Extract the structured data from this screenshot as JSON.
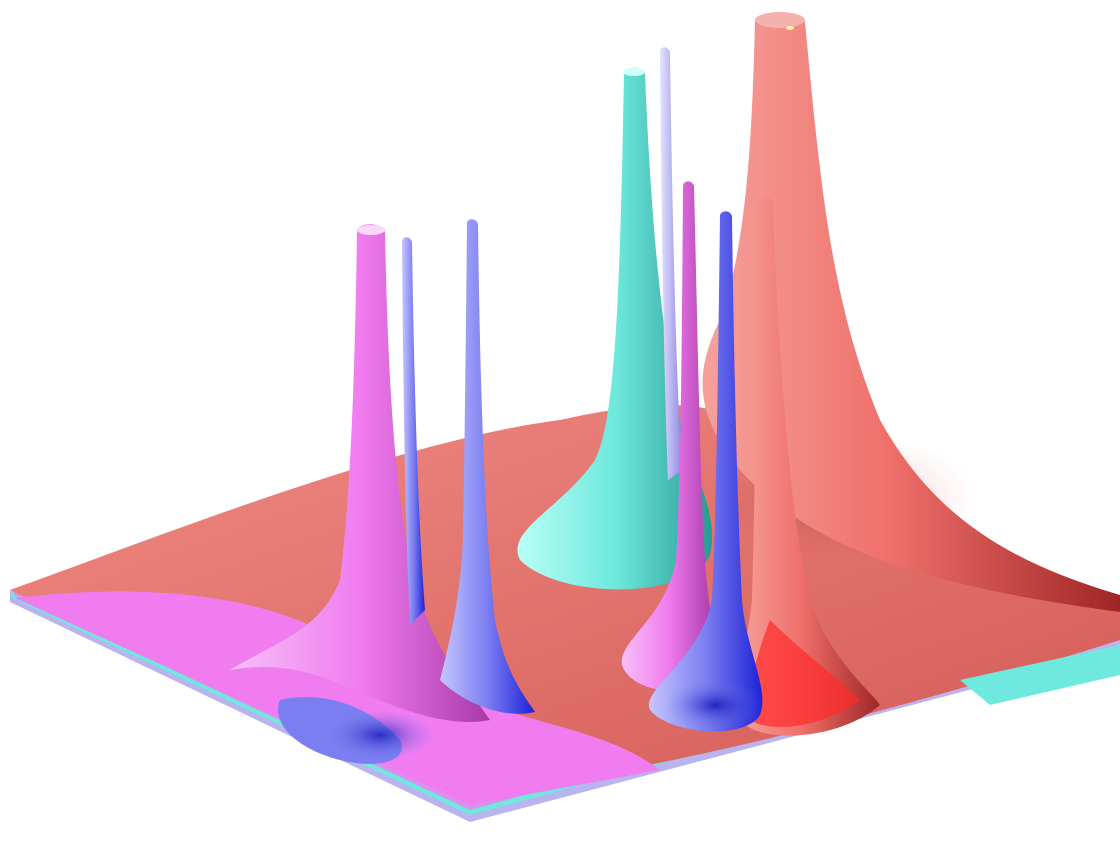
{
  "scene": {
    "subject": "3d-surface-render",
    "colors": {
      "background": "#ffffff",
      "red": "#ef6f6a",
      "red_dark": "#a82f2f",
      "magenta": "#f07cf0",
      "magenta_dark": "#b33ab3",
      "blue": "#7b7ef0",
      "blue_dark": "#1d21d8",
      "cyan": "#6fe8dd",
      "cyan_dark": "#2aa7a0",
      "lavender": "#b9b4f0"
    },
    "peaks": [
      {
        "name": "red-tall-peak",
        "color_key": "red"
      },
      {
        "name": "cyan-peak",
        "color_key": "cyan"
      },
      {
        "name": "magenta-left-peak",
        "color_key": "magenta"
      },
      {
        "name": "magenta-right-peak",
        "color_key": "magenta"
      },
      {
        "name": "blue-left-thin-peak",
        "color_key": "blue"
      },
      {
        "name": "blue-left-mid-peak",
        "color_key": "blue"
      },
      {
        "name": "blue-right-peak",
        "color_key": "blue"
      },
      {
        "name": "lavender-center-peak",
        "color_key": "lavender"
      },
      {
        "name": "red-right-thin-peak",
        "color_key": "red"
      }
    ]
  }
}
